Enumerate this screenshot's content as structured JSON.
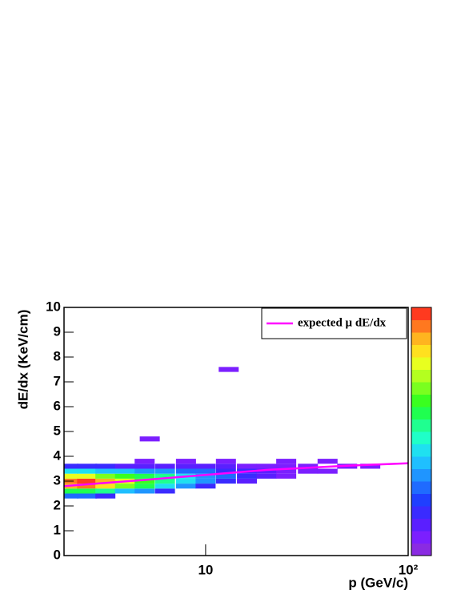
{
  "chart_data": {
    "type": "heatmap",
    "xlabel": "p (GeV/c)",
    "ylabel": "dE/dx (KeV/cm)",
    "log_x": true,
    "xlim": [
      2,
      100
    ],
    "ylim": [
      0,
      10
    ],
    "xticks": [
      10,
      {
        "value": 100,
        "label": "10²"
      }
    ],
    "yticks": [
      0,
      1,
      2,
      3,
      4,
      5,
      6,
      7,
      8,
      9,
      10
    ],
    "zlim": [
      0,
      16
    ],
    "palette": [
      "#8a2be2",
      "#7b1fff",
      "#5a1fff",
      "#3a2bff",
      "#1f3fff",
      "#1f6bff",
      "#1f95ff",
      "#1fbfff",
      "#1fe0f0",
      "#1fffc8",
      "#1fff90",
      "#1fff50",
      "#3aff1f",
      "#7aff1f",
      "#b4ff1f",
      "#e8ff1f",
      "#ffe01f",
      "#ffb41f",
      "#ff781f",
      "#ff3a1f"
    ],
    "cells": {
      "x": [
        2.1,
        2.1,
        2.1,
        2.1,
        2.1,
        2.1,
        2.1,
        2.6,
        2.6,
        2.6,
        2.6,
        2.6,
        2.6,
        2.6,
        3.2,
        3.2,
        3.2,
        3.2,
        3.2,
        3.2,
        3.2,
        4,
        4,
        4,
        4,
        4,
        4,
        5,
        5,
        5,
        5,
        5,
        5,
        5,
        6.3,
        6.3,
        6.3,
        6.3,
        6.3,
        6.3,
        8,
        8,
        8,
        8,
        8,
        8,
        10,
        10,
        10,
        10,
        10,
        12.6,
        12.6,
        12.6,
        12.6,
        12.6,
        16,
        16,
        16,
        16,
        20,
        20,
        20,
        25,
        25,
        25,
        25,
        32,
        32,
        40,
        40,
        50,
        13,
        5.3,
        65
      ],
      "y": [
        2.4,
        2.6,
        2.8,
        3.0,
        3.2,
        3.4,
        3.6,
        2.4,
        2.6,
        2.8,
        3.0,
        3.2,
        3.4,
        3.6,
        2.4,
        2.6,
        2.8,
        3.0,
        3.2,
        3.4,
        3.6,
        2.6,
        2.8,
        3.0,
        3.2,
        3.4,
        3.6,
        2.6,
        2.8,
        3.0,
        3.2,
        3.4,
        3.6,
        3.8,
        2.6,
        2.8,
        3.0,
        3.2,
        3.4,
        3.6,
        2.8,
        3.0,
        3.2,
        3.4,
        3.6,
        3.8,
        2.8,
        3.0,
        3.2,
        3.4,
        3.6,
        3.0,
        3.2,
        3.4,
        3.6,
        3.8,
        3.0,
        3.2,
        3.4,
        3.6,
        3.2,
        3.4,
        3.6,
        3.2,
        3.4,
        3.6,
        3.8,
        3.4,
        3.6,
        3.4,
        3.8,
        3.6,
        7.5,
        4.7,
        3.6
      ],
      "z": [
        4,
        9,
        14,
        15,
        12,
        7,
        3,
        4,
        9,
        15,
        16,
        12,
        7,
        3,
        3,
        8,
        13,
        14,
        11,
        6,
        3,
        6,
        11,
        12,
        10,
        6,
        2,
        5,
        9,
        10,
        9,
        5,
        2,
        1,
        3,
        7,
        8,
        8,
        5,
        2,
        5,
        7,
        7,
        4,
        2,
        1,
        3,
        5,
        5,
        4,
        2,
        3,
        4,
        3,
        2,
        1,
        2,
        3,
        3,
        1,
        2,
        2,
        1,
        1,
        1,
        1,
        1,
        1,
        1,
        1,
        1,
        1,
        1,
        1,
        1
      ]
    },
    "series": [
      {
        "name": "expected μ dE/dx",
        "color": "#ff00ff",
        "x": [
          2,
          5,
          10,
          20,
          50,
          100
        ],
        "values": [
          2.8,
          3.05,
          3.25,
          3.45,
          3.62,
          3.72
        ]
      }
    ]
  }
}
